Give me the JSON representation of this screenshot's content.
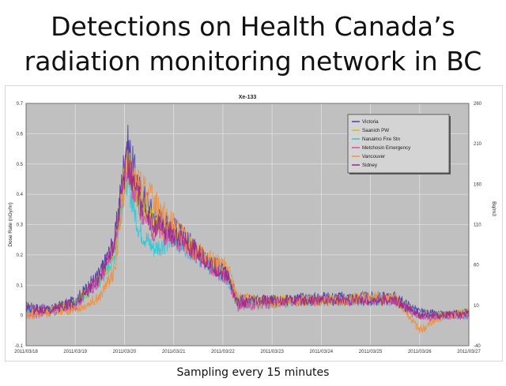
{
  "slide": {
    "title_line1": "Detections on Health Canada’s",
    "title_line2": "radiation monitoring network in BC",
    "caption": "Sampling every 15 minutes"
  },
  "chart_data": {
    "type": "line",
    "title": "Xe-133",
    "ylabel": "Dose Rate (nGy/hr)",
    "y2label": "Bq/m3",
    "ylim": [
      -0.1,
      0.7
    ],
    "yticks": [
      -0.1,
      0,
      0.1,
      0.2,
      0.3,
      0.4,
      0.5,
      0.6,
      0.7
    ],
    "y2lim": [
      -40,
      260
    ],
    "y2ticks": [
      -40,
      10,
      60,
      110,
      160,
      210,
      260
    ],
    "xlim": [
      0,
      9
    ],
    "x_tick_labels": [
      "2011/03/18",
      "2011/03/19",
      "2011/03/20",
      "2011/03/21",
      "2011/03/22",
      "2011/03/23",
      "2011/03/24",
      "2011/03/25",
      "2011/03/26",
      "2011/03/27"
    ],
    "grid": true,
    "legend_position": "top-right",
    "colors": {
      "plot_bg": "#c0c0c0",
      "grid": "#e0e0e0"
    },
    "series": [
      {
        "name": "Victoria",
        "color": "#4b3fa6",
        "x": [
          0,
          0.5,
          1,
          1.5,
          1.8,
          1.95,
          2.05,
          2.3,
          2.6,
          3.0,
          3.4,
          3.8,
          4.1,
          4.3,
          5.0,
          6.0,
          7.0,
          7.5,
          8.0,
          8.5,
          9.0
        ],
        "y": [
          0.03,
          0.02,
          0.05,
          0.14,
          0.25,
          0.45,
          0.58,
          0.42,
          0.33,
          0.29,
          0.23,
          0.17,
          0.14,
          0.05,
          0.05,
          0.06,
          0.06,
          0.06,
          0.01,
          0.0,
          0.01
        ]
      },
      {
        "name": "Saanich PW",
        "color": "#c8c020",
        "x": [
          0,
          0.5,
          1,
          1.5,
          1.8,
          1.95,
          2.05,
          2.3,
          2.6,
          3.0,
          3.4,
          3.8,
          4.1,
          4.3,
          5.0,
          6.0,
          7.0,
          7.5,
          8.0,
          8.5,
          9.0
        ],
        "y": [
          0.01,
          0.02,
          0.04,
          0.12,
          0.2,
          0.4,
          0.5,
          0.38,
          0.3,
          0.27,
          0.22,
          0.16,
          0.13,
          0.04,
          0.05,
          0.05,
          0.05,
          0.05,
          0.0,
          0.0,
          0.01
        ]
      },
      {
        "name": "Nanaimo Fire Stn",
        "color": "#30c8d8",
        "x": [
          0,
          0.5,
          1,
          1.5,
          1.8,
          1.95,
          2.05,
          2.3,
          2.6,
          3.0,
          3.4,
          3.8,
          4.1,
          4.3,
          5.0,
          6.0,
          7.0,
          7.5,
          8.0,
          8.5,
          9.0
        ],
        "y": [
          0.02,
          0.01,
          0.04,
          0.11,
          0.2,
          0.38,
          0.45,
          0.28,
          0.22,
          0.25,
          0.21,
          0.15,
          0.12,
          0.04,
          0.04,
          0.05,
          0.05,
          0.05,
          0.0,
          0.0,
          0.0
        ]
      },
      {
        "name": "Metchosin Emergency",
        "color": "#d050a0",
        "x": [
          0,
          0.5,
          1,
          1.5,
          1.8,
          1.95,
          2.05,
          2.3,
          2.6,
          3.0,
          3.4,
          3.8,
          4.1,
          4.3,
          5.0,
          6.0,
          7.0,
          7.5,
          8.0,
          8.5,
          9.0
        ],
        "y": [
          0.0,
          0.01,
          0.03,
          0.12,
          0.22,
          0.42,
          0.5,
          0.35,
          0.28,
          0.26,
          0.21,
          0.15,
          0.12,
          0.03,
          0.04,
          0.05,
          0.05,
          0.05,
          -0.01,
          0.0,
          0.0
        ]
      },
      {
        "name": "Vancouver",
        "color": "#f09040",
        "x": [
          0,
          0.5,
          1,
          1.5,
          1.8,
          1.95,
          2.05,
          2.3,
          2.6,
          3.0,
          3.4,
          3.8,
          4.1,
          4.3,
          5.0,
          6.0,
          7.0,
          7.5,
          8.0,
          8.5,
          9.0
        ],
        "y": [
          0.0,
          0.01,
          0.02,
          0.06,
          0.15,
          0.35,
          0.48,
          0.43,
          0.38,
          0.3,
          0.22,
          0.18,
          0.16,
          0.06,
          0.04,
          0.05,
          0.06,
          0.06,
          -0.05,
          0.0,
          0.01
        ]
      },
      {
        "name": "Sidney",
        "color": "#9a2a8a",
        "x": [
          0,
          0.5,
          1,
          1.5,
          1.8,
          1.95,
          2.05,
          2.3,
          2.6,
          3.0,
          3.4,
          3.8,
          4.1,
          4.3,
          5.0,
          6.0,
          7.0,
          7.5,
          8.0,
          8.5,
          9.0
        ],
        "y": [
          0.02,
          0.02,
          0.04,
          0.13,
          0.24,
          0.42,
          0.52,
          0.38,
          0.3,
          0.27,
          0.22,
          0.16,
          0.13,
          0.04,
          0.05,
          0.05,
          0.05,
          0.05,
          0.0,
          0.0,
          0.01
        ]
      }
    ]
  }
}
